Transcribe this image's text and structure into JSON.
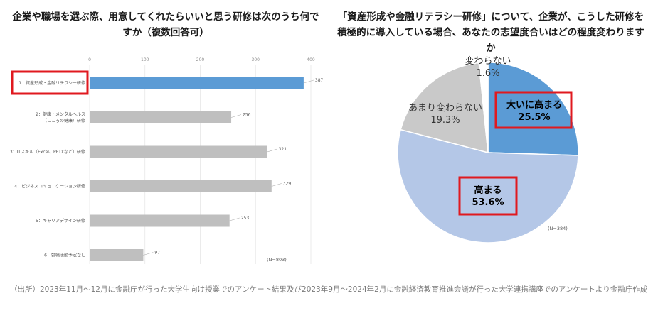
{
  "left_chart": {
    "title": "企業や職場を選ぶ際、用意してくれたらいいと思う研修は次のうち何ですか（複数回答可）",
    "note": "(N=803)"
  },
  "right_chart": {
    "title": "「資産形成や金融リテラシー研修」について、企業が、こうした研修を積極的に導入している場合、あなたの志望度合いはどの程度変わりますか",
    "note": "(N=384)"
  },
  "footer": "（出所）2023年11月～12月に金融庁が行った大学生向け授業でのアンケート結果及び2023年9月～2024年2月に金融経済教育推進会議が行った大学連携講座でのアンケートより金融庁作成",
  "colors": {
    "bar_highlight": "#5b9bd5",
    "bar_default": "#bfbfbf",
    "pie_dark_blue": "#5b9bd5",
    "pie_light_blue": "#b4c7e7",
    "pie_gray": "#c9c9c9",
    "pie_white": "#ffffff",
    "highlight_box": "#e0191f"
  },
  "chart_data": [
    {
      "type": "bar",
      "orientation": "horizontal",
      "categories": [
        "1：資産形成・金融リテラシー研修",
        "2：健康・メンタルヘルス（こころの健康）研修",
        "3：ITスキル（Excel、PPTXなど）研修",
        "4：ビジネスコミュニケーション研修",
        "5：キャリアデザイン研修",
        "6：就職活動予定なし"
      ],
      "category_lines": [
        [
          "1：資産形成・金融リテラシー研修"
        ],
        [
          "2：健康・メンタルヘルス",
          "（こころの健康）研修"
        ],
        [
          "3：ITスキル（Excel、PPTXなど）研修"
        ],
        [
          "4：ビジネスコミュニケーション研修"
        ],
        [
          "5：キャリアデザイン研修"
        ],
        [
          "6：就職活動予定なし"
        ]
      ],
      "values": [
        387,
        256,
        321,
        329,
        253,
        97
      ],
      "data_labels": [
        "387",
        "256",
        "321",
        "329",
        "253",
        "97"
      ],
      "highlight_index": 0,
      "xlim": [
        0,
        400
      ],
      "ticks": [
        0,
        100,
        200,
        300,
        400
      ],
      "tick_labels": [
        "0",
        "100",
        "200",
        "300",
        "400"
      ],
      "grid": true
    },
    {
      "type": "pie",
      "slices": [
        {
          "label": "大いに高まる",
          "value": 25.5,
          "value_label": "25.5%",
          "color_key": "pie_dark_blue",
          "boxed": true
        },
        {
          "label": "高まる",
          "value": 53.6,
          "value_label": "53.6%",
          "color_key": "pie_light_blue",
          "boxed": true
        },
        {
          "label": "あまり変わらない",
          "value": 19.3,
          "value_label": "19.3%",
          "color_key": "pie_gray",
          "boxed": false
        },
        {
          "label": "変わらない",
          "value": 1.6,
          "value_label": "1.6%",
          "color_key": "pie_white",
          "boxed": false
        }
      ]
    }
  ]
}
